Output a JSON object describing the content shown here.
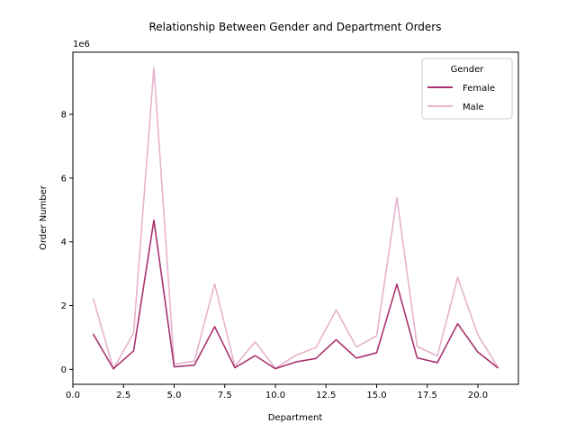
{
  "chart_data": {
    "type": "line",
    "title": "Relationship Between Gender and Department Orders",
    "xlabel": "Department",
    "ylabel": "Order Number",
    "y_offset_label": "1e6",
    "xlim": [
      0,
      22.0
    ],
    "ylim": [
      -0.47,
      9.95
    ],
    "x_ticks": [
      0.0,
      2.5,
      5.0,
      7.5,
      10.0,
      12.5,
      15.0,
      17.5,
      20.0
    ],
    "x_tick_labels": [
      "0.0",
      "2.5",
      "5.0",
      "7.5",
      "10.0",
      "12.5",
      "15.0",
      "17.5",
      "20.0"
    ],
    "y_ticks": [
      0,
      2,
      4,
      6,
      8
    ],
    "y_tick_labels": [
      "0",
      "2",
      "4",
      "6",
      "8"
    ],
    "legend": {
      "title": "Gender",
      "placement": "top-right"
    },
    "grid": false,
    "x": [
      1,
      2,
      3,
      4,
      5,
      6,
      7,
      8,
      9,
      10,
      11,
      12,
      13,
      14,
      15,
      16,
      17,
      18,
      19,
      20,
      21
    ],
    "series": [
      {
        "name": "Female",
        "color": "#a8336e",
        "values": [
          1.11,
          0.017,
          0.58,
          4.68,
          0.08,
          0.13,
          1.34,
          0.05,
          0.43,
          0.02,
          0.23,
          0.34,
          0.93,
          0.35,
          0.52,
          2.67,
          0.36,
          0.21,
          1.43,
          0.54,
          0.04
        ]
      },
      {
        "name": "Male",
        "color": "#e6b3cc",
        "values": [
          2.23,
          0.017,
          1.14,
          9.47,
          0.16,
          0.26,
          2.68,
          0.1,
          0.86,
          0.03,
          0.44,
          0.68,
          1.86,
          0.7,
          1.05,
          5.38,
          0.72,
          0.42,
          2.88,
          1.08,
          0.05
        ]
      }
    ]
  }
}
